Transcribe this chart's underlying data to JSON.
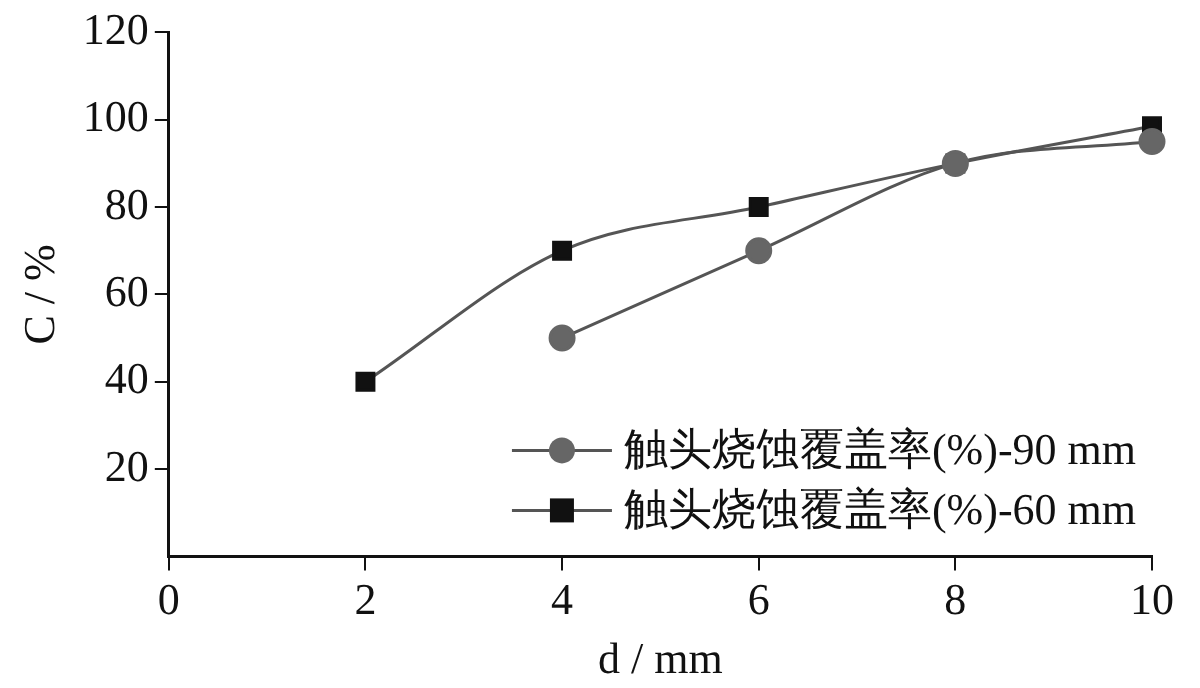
{
  "chart_data": {
    "type": "line",
    "xlabel": "d / mm",
    "ylabel": "C / %",
    "xlim": [
      0,
      10
    ],
    "xticks": [
      0,
      2,
      4,
      6,
      8,
      10
    ],
    "ylim": [
      0,
      120
    ],
    "yticks": [
      20,
      40,
      60,
      80,
      100,
      120
    ],
    "grid": false,
    "legend": "bottom right",
    "series": [
      {
        "name": "触头烧蚀覆盖率(%)-90 mm",
        "color": "#666666",
        "marker": "circle",
        "x": [
          4,
          6,
          8,
          10
        ],
        "values": [
          50,
          70,
          90,
          95
        ]
      },
      {
        "name": "触头烧蚀覆盖率(%)-60 mm",
        "color": "#111111",
        "marker": "square",
        "x": [
          2,
          4,
          6,
          8,
          10
        ],
        "values": [
          40,
          70,
          80,
          90,
          98.5
        ]
      }
    ]
  }
}
